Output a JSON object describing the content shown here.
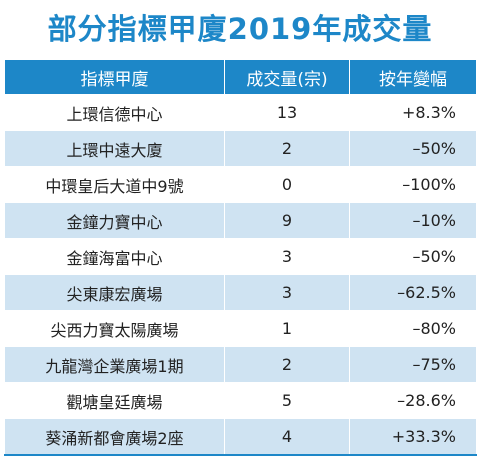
{
  "title": "部分指標甲廈2019年成交量",
  "headers": [
    "指標甲廈",
    "成交量(宗)",
    "按年變幅"
  ],
  "rows": [
    [
      "上環信德中心",
      "13",
      "+8.3%"
    ],
    [
      "上環中遠大廈",
      "2",
      "–50%"
    ],
    [
      "中環皇后大道中9號",
      "0",
      "–100%"
    ],
    [
      "金鐘力寶中心",
      "9",
      "–10%"
    ],
    [
      "金鐘海富中心",
      "3",
      "–50%"
    ],
    [
      "尖東康宏廣場",
      "3",
      "–62.5%"
    ],
    [
      "尖西力寶太陽廣場",
      "1",
      "–80%"
    ],
    [
      "九龍灣企業廣場1期",
      "2",
      "–75%"
    ],
    [
      "觀塘皇廷廣場",
      "5",
      "–28.6%"
    ],
    [
      "葵涌新都會廣場2座",
      "4",
      "+33.3%"
    ]
  ],
  "colors": {
    "header_bg": "#1d87c8",
    "stripe": "#cfe3f2",
    "title": "#1d87c8"
  }
}
